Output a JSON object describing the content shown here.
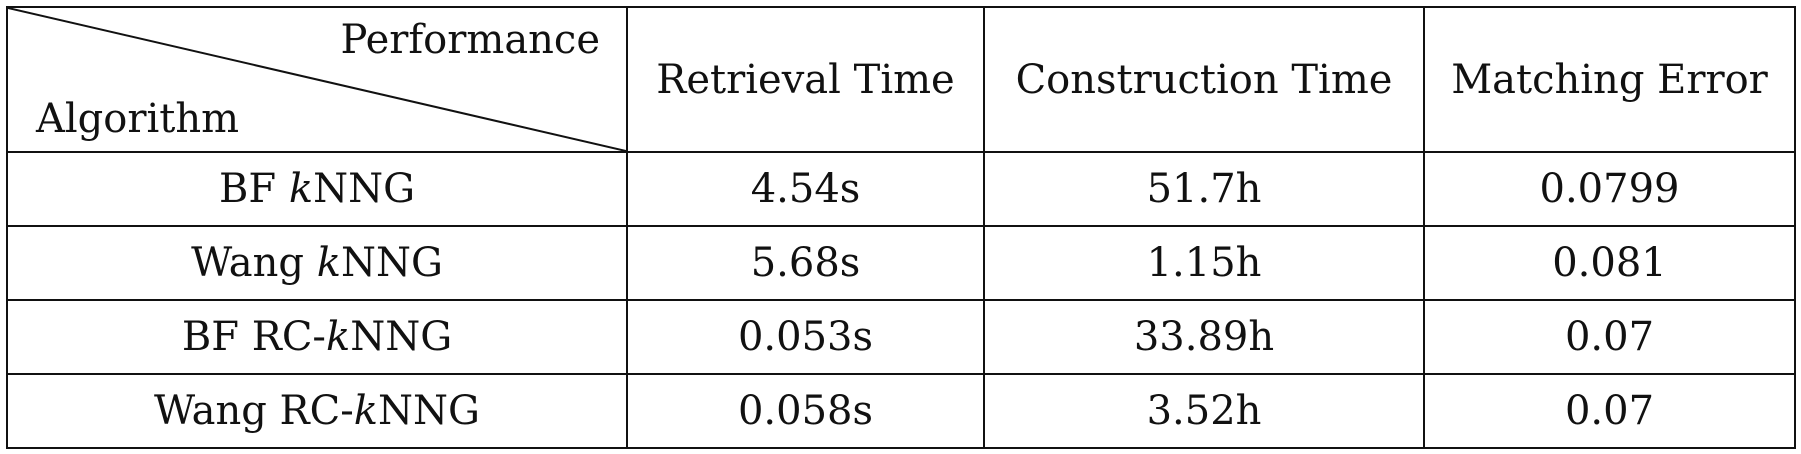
{
  "table": {
    "corner": {
      "column_header": "Performance",
      "row_header": "Algorithm"
    },
    "columns": [
      "Retrieval Time",
      "Construction Time",
      "Matching Error"
    ],
    "rows": [
      {
        "algorithm_prefix": "BF ",
        "algorithm_k": "k",
        "algorithm_suffix": "NNG",
        "retrieval_time": "4.54s",
        "construction_time": "51.7h",
        "matching_error": "0.0799"
      },
      {
        "algorithm_prefix": "Wang ",
        "algorithm_k": "k",
        "algorithm_suffix": "NNG",
        "retrieval_time": "5.68s",
        "construction_time": "1.15h",
        "matching_error": "0.081"
      },
      {
        "algorithm_prefix": "BF RC-",
        "algorithm_k": "k",
        "algorithm_suffix": "NNG",
        "retrieval_time": "0.053s",
        "construction_time": "33.89h",
        "matching_error": "0.07"
      },
      {
        "algorithm_prefix": "Wang RC-",
        "algorithm_k": "k",
        "algorithm_suffix": "NNG",
        "retrieval_time": "0.058s",
        "construction_time": "3.52h",
        "matching_error": "0.07"
      }
    ]
  }
}
